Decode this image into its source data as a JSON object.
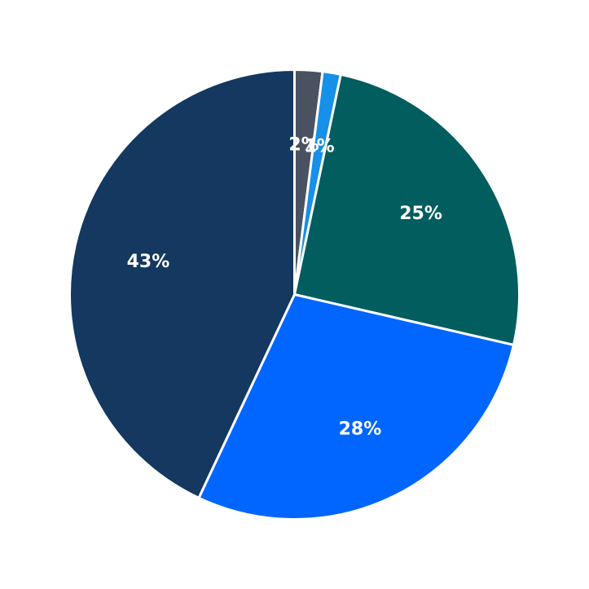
{
  "chart_data": {
    "type": "pie",
    "title": "",
    "start": "top",
    "direction": "clockwise",
    "slices": [
      {
        "label_text": "2%",
        "value": 2,
        "color": "#4a5261"
      },
      {
        "label_text": "1%",
        "value": 1.3,
        "color": "#1690e8"
      },
      {
        "label_text": "25%",
        "value": 25.3,
        "color": "#015d5e"
      },
      {
        "label_text": "28%",
        "value": 28.4,
        "color": "#0066ff"
      },
      {
        "label_text": "43%",
        "value": 43,
        "color": "#14385f"
      }
    ],
    "slice_border_color": "#ffffff"
  }
}
